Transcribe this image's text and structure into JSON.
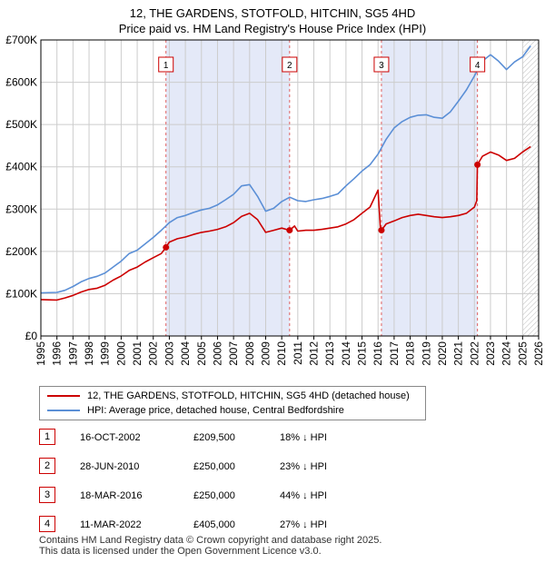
{
  "title_line1": "12, THE GARDENS, STOTFOLD, HITCHIN, SG5 4HD",
  "title_line2": "Price paid vs. HM Land Registry's House Price Index (HPI)",
  "chart_data": {
    "type": "line",
    "title": "12, THE GARDENS, STOTFOLD, HITCHIN, SG5 4HD — Price paid vs. HM Land Registry's House Price Index (HPI)",
    "xlabel": "",
    "ylabel": "",
    "xlim": [
      1995,
      2026
    ],
    "ylim": [
      0,
      700000
    ],
    "x_ticks": [
      "1995",
      "1996",
      "1997",
      "1998",
      "1999",
      "2000",
      "2001",
      "2002",
      "2003",
      "2004",
      "2005",
      "2006",
      "2007",
      "2008",
      "2009",
      "2010",
      "2011",
      "2012",
      "2013",
      "2014",
      "2015",
      "2016",
      "2017",
      "2018",
      "2019",
      "2020",
      "2021",
      "2022",
      "2023",
      "2024",
      "2025",
      "2026"
    ],
    "y_ticks": [
      {
        "value": 0,
        "label": "£0"
      },
      {
        "value": 100000,
        "label": "£100K"
      },
      {
        "value": 200000,
        "label": "£200K"
      },
      {
        "value": 300000,
        "label": "£300K"
      },
      {
        "value": 400000,
        "label": "£400K"
      },
      {
        "value": 500000,
        "label": "£500K"
      },
      {
        "value": 600000,
        "label": "£600K"
      },
      {
        "value": 700000,
        "label": "£700K"
      }
    ],
    "grid": true,
    "series": [
      {
        "name": "12, THE GARDENS, STOTFOLD, HITCHIN, SG5 4HD (detached house)",
        "color": "#cc0000",
        "x": [
          1995.0,
          1996.0,
          1996.5,
          1997.0,
          1997.5,
          1998.0,
          1998.5,
          1999.0,
          1999.5,
          2000.0,
          2000.5,
          2001.0,
          2001.5,
          2002.0,
          2002.5,
          2002.79,
          2003.0,
          2003.5,
          2004.0,
          2004.5,
          2005.0,
          2005.5,
          2006.0,
          2006.5,
          2007.0,
          2007.5,
          2008.0,
          2008.5,
          2009.0,
          2009.5,
          2010.0,
          2010.49,
          2010.8,
          2011.0,
          2011.5,
          2012.0,
          2012.5,
          2013.0,
          2013.5,
          2014.0,
          2014.5,
          2015.0,
          2015.5,
          2016.0,
          2016.15,
          2016.21,
          2016.5,
          2017.0,
          2017.5,
          2018.0,
          2018.5,
          2019.0,
          2019.5,
          2020.0,
          2020.5,
          2021.0,
          2021.5,
          2022.0,
          2022.15,
          2022.19,
          2022.5,
          2023.0,
          2023.5,
          2024.0,
          2024.5,
          2025.0,
          2025.5
        ],
        "values": [
          86000,
          85000,
          90000,
          96000,
          104000,
          110000,
          113000,
          120000,
          132000,
          142000,
          155000,
          163000,
          175000,
          185000,
          195000,
          209500,
          222000,
          230000,
          234000,
          240000,
          245000,
          248000,
          252000,
          258000,
          268000,
          283000,
          290000,
          275000,
          245000,
          250000,
          255000,
          250000,
          260000,
          248000,
          250000,
          250000,
          252000,
          255000,
          258000,
          265000,
          275000,
          290000,
          305000,
          345000,
          250000,
          250000,
          265000,
          272000,
          280000,
          285000,
          288000,
          285000,
          282000,
          280000,
          282000,
          285000,
          290000,
          305000,
          320000,
          405000,
          425000,
          435000,
          428000,
          415000,
          420000,
          435000,
          448000
        ]
      },
      {
        "name": "HPI: Average price, detached house, Central Bedfordshire",
        "color": "#5b8fd6",
        "x": [
          1995.0,
          1996.0,
          1996.5,
          1997.0,
          1997.5,
          1998.0,
          1998.5,
          1999.0,
          1999.5,
          2000.0,
          2000.5,
          2001.0,
          2001.5,
          2002.0,
          2002.5,
          2003.0,
          2003.5,
          2004.0,
          2004.5,
          2005.0,
          2005.5,
          2006.0,
          2006.5,
          2007.0,
          2007.5,
          2008.0,
          2008.5,
          2009.0,
          2009.5,
          2010.0,
          2010.5,
          2011.0,
          2011.5,
          2012.0,
          2012.5,
          2013.0,
          2013.5,
          2014.0,
          2014.5,
          2015.0,
          2015.5,
          2016.0,
          2016.5,
          2017.0,
          2017.5,
          2018.0,
          2018.5,
          2019.0,
          2019.5,
          2020.0,
          2020.5,
          2021.0,
          2021.5,
          2022.0,
          2022.5,
          2023.0,
          2023.5,
          2024.0,
          2024.5,
          2025.0,
          2025.5
        ],
        "values": [
          102000,
          103000,
          108000,
          117000,
          128000,
          136000,
          141000,
          149000,
          163000,
          177000,
          195000,
          203000,
          218000,
          233000,
          250000,
          268000,
          280000,
          285000,
          292000,
          298000,
          302000,
          310000,
          322000,
          335000,
          355000,
          358000,
          330000,
          295000,
          302000,
          318000,
          328000,
          320000,
          318000,
          322000,
          325000,
          330000,
          336000,
          355000,
          372000,
          390000,
          405000,
          430000,
          465000,
          492000,
          507000,
          517000,
          522000,
          523000,
          517000,
          515000,
          530000,
          555000,
          582000,
          615000,
          650000,
          665000,
          650000,
          630000,
          648000,
          660000,
          686000
        ]
      }
    ],
    "sale_markers": [
      {
        "label": "1",
        "x": 2002.79,
        "value": 209500
      },
      {
        "label": "2",
        "x": 2010.49,
        "value": 250000
      },
      {
        "label": "3",
        "x": 2016.21,
        "value": 250000
      },
      {
        "label": "4",
        "x": 2022.19,
        "value": 405000
      }
    ],
    "shaded_periods": [
      [
        2002.79,
        2010.49
      ],
      [
        2016.21,
        2022.19
      ]
    ],
    "hatched_from": 2025.0,
    "colors": {
      "property": "#cc0000",
      "hpi": "#5b8fd6",
      "shade": "#e4e9f8",
      "grid": "#cccccc",
      "marker_line": "#e06060"
    }
  },
  "legend": {
    "property_label": "12, THE GARDENS, STOTFOLD, HITCHIN, SG5 4HD (detached house)",
    "hpi_label": "HPI: Average price, detached house, Central Bedfordshire"
  },
  "sales": [
    {
      "num": "1",
      "date": "16-OCT-2002",
      "price": "£209,500",
      "hpi": "18% ↓ HPI"
    },
    {
      "num": "2",
      "date": "28-JUN-2010",
      "price": "£250,000",
      "hpi": "23% ↓ HPI"
    },
    {
      "num": "3",
      "date": "18-MAR-2016",
      "price": "£250,000",
      "hpi": "44% ↓ HPI"
    },
    {
      "num": "4",
      "date": "11-MAR-2022",
      "price": "£405,000",
      "hpi": "27% ↓ HPI"
    }
  ],
  "footer_line1": "Contains HM Land Registry data © Crown copyright and database right 2025.",
  "footer_line2": "This data is licensed under the Open Government Licence v3.0."
}
